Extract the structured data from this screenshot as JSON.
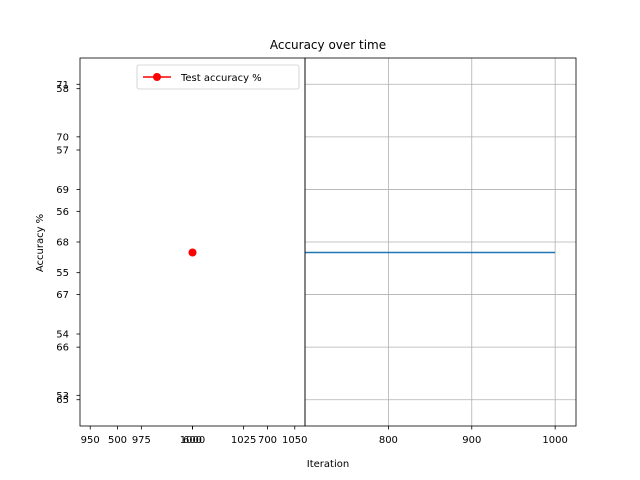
{
  "chart_data": {
    "type": "line",
    "title": "Accuracy over time",
    "xlabel": "Iteration",
    "ylabel": "Accuracy %",
    "panels": [
      {
        "name": "test-accuracy",
        "legend": {
          "label": "Test accuracy %",
          "placement": "top-right",
          "color": "#ff0000"
        },
        "x_axes": [
          {
            "ticks": [
              950,
              975,
              1000,
              1025,
              1050
            ],
            "labels": [
              "950",
              "975",
              "1000",
              "1025",
              "1050"
            ],
            "range": [
              945,
              1055
            ]
          },
          {
            "ticks": [
              500,
              600,
              700
            ],
            "labels": [
              "500",
              "600",
              "700"
            ],
            "range": [
              450,
              750
            ]
          }
        ],
        "y_axes": [
          {
            "ticks": [
              65,
              66,
              67,
              68,
              69,
              70,
              71
            ],
            "labels": [
              "65",
              "66",
              "67",
              "68",
              "69",
              "70",
              "71"
            ],
            "range": [
              64.5,
              71.5
            ]
          },
          {
            "ticks": [
              53,
              54,
              55,
              56,
              57,
              58
            ],
            "labels": [
              "53",
              "54",
              "55",
              "56",
              "57",
              "58"
            ],
            "range": [
              52.5,
              58.5
            ]
          }
        ],
        "series": [
          {
            "name": "Test accuracy %",
            "color": "#ff0000",
            "marker": "circle",
            "x": [
              1000
            ],
            "y": [
              67.8
            ]
          }
        ],
        "grid": false
      },
      {
        "name": "train-accuracy",
        "x_axis": {
          "ticks": [
            800,
            900,
            1000
          ],
          "labels": [
            "800",
            "900",
            "1000"
          ],
          "range": [
            700,
            1025
          ]
        },
        "y_range": [
          64.5,
          71.5
        ],
        "series": [
          {
            "color": "#1f77b4",
            "x": [
              700,
              1000
            ],
            "y": [
              67.8,
              67.8
            ]
          }
        ],
        "grid": true
      }
    ]
  }
}
